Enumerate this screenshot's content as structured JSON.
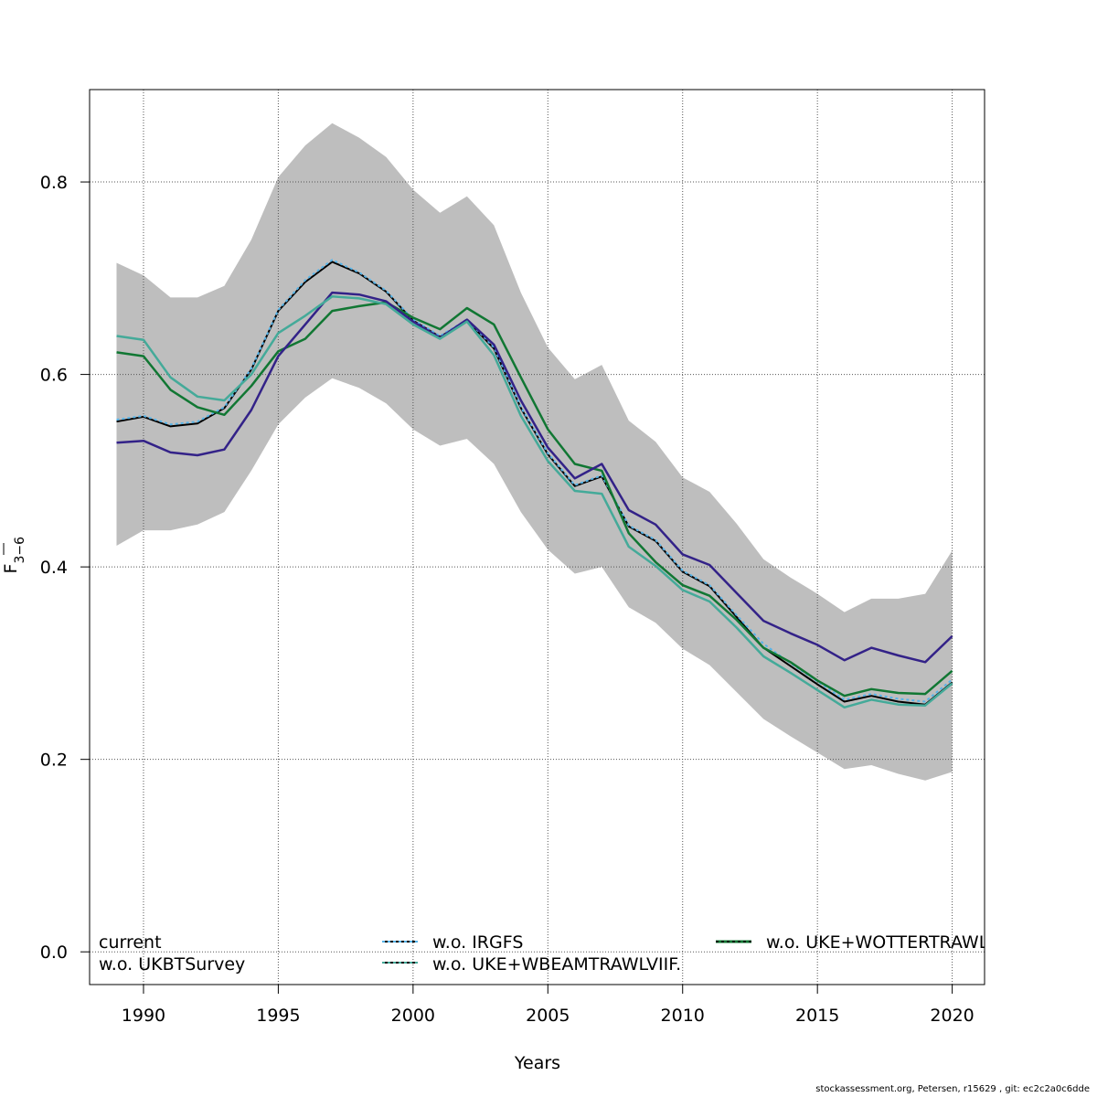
{
  "chart_data": {
    "type": "line",
    "xlabel": "Years",
    "ylabel_main": "F",
    "ylabel_sub": "3−6",
    "xlim": [
      1988,
      2021.2
    ],
    "ylim": [
      -0.034,
      0.896
    ],
    "xticks": [
      1990,
      1995,
      2000,
      2005,
      2010,
      2015,
      2020
    ],
    "yticks": [
      0.0,
      0.2,
      0.4,
      0.6,
      0.8
    ],
    "ytick_labels": [
      "0.0",
      "0.2",
      "0.4",
      "0.6",
      "0.8"
    ],
    "grid": true,
    "x": [
      1989,
      1990,
      1991,
      1992,
      1993,
      1994,
      1995,
      1996,
      1997,
      1998,
      1999,
      2000,
      2001,
      2002,
      2003,
      2004,
      2005,
      2006,
      2007,
      2008,
      2009,
      2010,
      2011,
      2012,
      2013,
      2014,
      2015,
      2016,
      2017,
      2018,
      2019,
      2020
    ],
    "band": {
      "upper": [
        0.716,
        0.703,
        0.68,
        0.68,
        0.692,
        0.74,
        0.805,
        0.838,
        0.861,
        0.846,
        0.826,
        0.792,
        0.768,
        0.785,
        0.755,
        0.685,
        0.628,
        0.595,
        0.61,
        0.552,
        0.53,
        0.493,
        0.478,
        0.445,
        0.408,
        0.389,
        0.372,
        0.353,
        0.367,
        0.367,
        0.372,
        0.417
      ],
      "lower": [
        0.422,
        0.438,
        0.438,
        0.444,
        0.457,
        0.5,
        0.548,
        0.576,
        0.596,
        0.586,
        0.57,
        0.543,
        0.526,
        0.533,
        0.507,
        0.457,
        0.418,
        0.393,
        0.4,
        0.358,
        0.342,
        0.315,
        0.298,
        0.27,
        0.242,
        0.224,
        0.207,
        0.19,
        0.194,
        0.185,
        0.178,
        0.187
      ],
      "color": "#bebebe"
    },
    "series": [
      {
        "name": "current",
        "color": "#000000",
        "dash": "",
        "width": 2,
        "values": [
          0.551,
          0.556,
          0.546,
          0.549,
          0.565,
          0.605,
          0.666,
          0.696,
          0.717,
          0.705,
          0.686,
          0.656,
          0.639,
          0.656,
          0.627,
          0.565,
          0.517,
          0.484,
          0.494,
          0.442,
          0.427,
          0.395,
          0.38,
          0.348,
          0.316,
          0.297,
          0.278,
          0.26,
          0.266,
          0.26,
          0.257,
          0.28
        ]
      },
      {
        "name": "w.o. IRGFS",
        "color": "#56b4e9",
        "dash": "3 3",
        "width": 2,
        "values": [
          0.553,
          0.557,
          0.548,
          0.551,
          0.566,
          0.606,
          0.667,
          0.698,
          0.719,
          0.706,
          0.687,
          0.657,
          0.64,
          0.657,
          0.628,
          0.566,
          0.518,
          0.485,
          0.495,
          0.443,
          0.428,
          0.396,
          0.381,
          0.35,
          0.32,
          0.3,
          0.281,
          0.262,
          0.268,
          0.263,
          0.26,
          0.283
        ]
      },
      {
        "name": "w.o. UKE+WOTTERTRAWL",
        "color": "#117733",
        "dash": "",
        "width": 2.5,
        "values": [
          0.623,
          0.619,
          0.584,
          0.566,
          0.558,
          0.588,
          0.624,
          0.637,
          0.666,
          0.671,
          0.675,
          0.659,
          0.647,
          0.669,
          0.652,
          0.597,
          0.543,
          0.507,
          0.5,
          0.435,
          0.405,
          0.381,
          0.37,
          0.345,
          0.316,
          0.301,
          0.282,
          0.266,
          0.273,
          0.269,
          0.268,
          0.292
        ]
      },
      {
        "name": "w.o. UKBTSurvey",
        "color": "#332288",
        "dash": "",
        "width": 2.5,
        "values": [
          0.529,
          0.531,
          0.519,
          0.516,
          0.522,
          0.563,
          0.619,
          0.652,
          0.685,
          0.683,
          0.676,
          0.655,
          0.638,
          0.657,
          0.631,
          0.573,
          0.524,
          0.492,
          0.507,
          0.459,
          0.444,
          0.413,
          0.402,
          0.373,
          0.344,
          0.331,
          0.319,
          0.303,
          0.316,
          0.308,
          0.301,
          0.328
        ]
      },
      {
        "name": "w.o. UKE+WBEAMTRAWLVIIF.",
        "color": "#44aa99",
        "dash": "",
        "width": 2.5,
        "values": [
          0.64,
          0.636,
          0.597,
          0.577,
          0.573,
          0.6,
          0.643,
          0.661,
          0.681,
          0.679,
          0.673,
          0.652,
          0.637,
          0.655,
          0.62,
          0.557,
          0.51,
          0.479,
          0.476,
          0.421,
          0.401,
          0.376,
          0.364,
          0.337,
          0.307,
          0.29,
          0.272,
          0.254,
          0.262,
          0.257,
          0.256,
          0.279
        ]
      }
    ]
  },
  "legend": {
    "col1": [
      "current",
      "w.o. UKBTSurvey"
    ],
    "col2": [
      "w.o. IRGFS",
      "w.o. UKE+WBEAMTRAWLVIIF."
    ],
    "col3": [
      "w.o. UKE+WOTTERTRAWL"
    ]
  },
  "footer": "stockassessment.org, Petersen, r15629 , git: ec2c2a0c6dde"
}
